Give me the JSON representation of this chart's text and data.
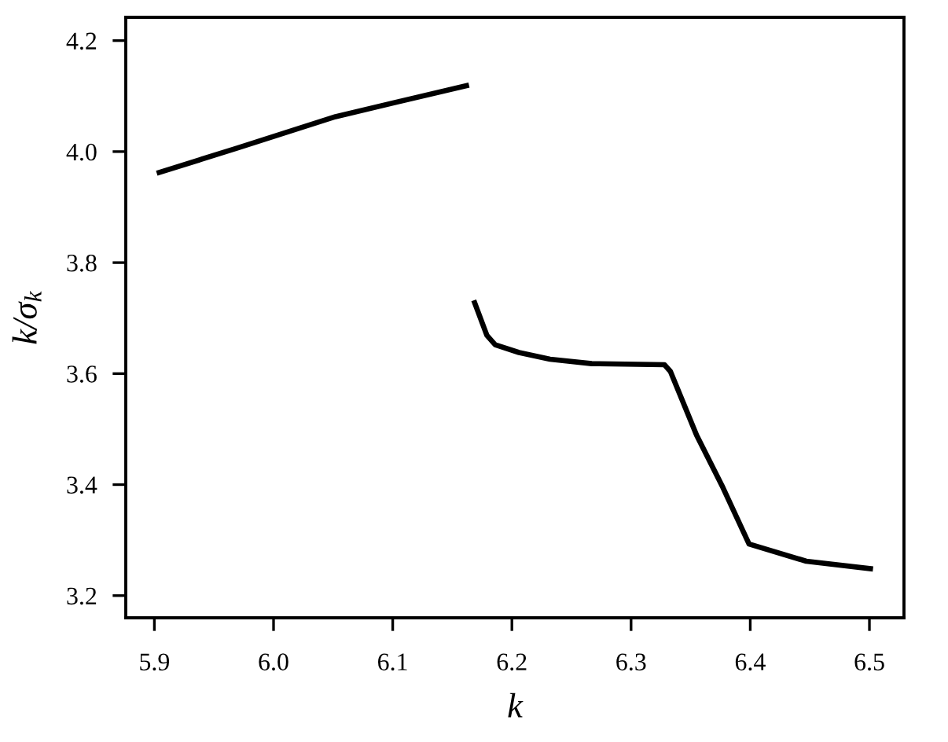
{
  "chart_data": {
    "type": "line",
    "xlabel": "k",
    "ylabel": "k/σ$_{k}$",
    "series": [
      {
        "color": "#000000",
        "x": [
          5.902,
          5.969,
          6.052,
          6.164
        ],
        "values": [
          3.961,
          4.006,
          4.063,
          4.12
        ]
      },
      {
        "color": "#000000",
        "x": [
          6.168,
          6.179,
          6.186,
          6.206,
          6.232,
          6.267,
          6.328,
          6.333,
          6.355,
          6.377,
          6.399,
          6.447,
          6.503
        ],
        "values": [
          3.732,
          3.669,
          3.652,
          3.638,
          3.626,
          3.618,
          3.616,
          3.604,
          3.489,
          3.395,
          3.293,
          3.262,
          3.248
        ]
      }
    ],
    "xlim": [
      5.876,
      6.529
    ],
    "ylim": [
      3.16,
      4.242
    ],
    "xticks": [
      {
        "value": 5.9,
        "label": "5.9"
      },
      {
        "value": 6.0,
        "label": "6.0"
      },
      {
        "value": 6.1,
        "label": "6.1"
      },
      {
        "value": 6.2,
        "label": "6.2"
      },
      {
        "value": 6.3,
        "label": "6.3"
      },
      {
        "value": 6.4,
        "label": "6.4"
      },
      {
        "value": 6.5,
        "label": "6.5"
      }
    ],
    "yticks": [
      {
        "value": 3.2,
        "label": "3.2"
      },
      {
        "value": 3.4,
        "label": "3.4"
      },
      {
        "value": 3.6,
        "label": "3.6"
      },
      {
        "value": 3.8,
        "label": "3.8"
      },
      {
        "value": 4.0,
        "label": "4.0"
      },
      {
        "value": 4.2,
        "label": "4.2"
      }
    ],
    "grid": false,
    "marker": "none",
    "line_style": "solid"
  }
}
